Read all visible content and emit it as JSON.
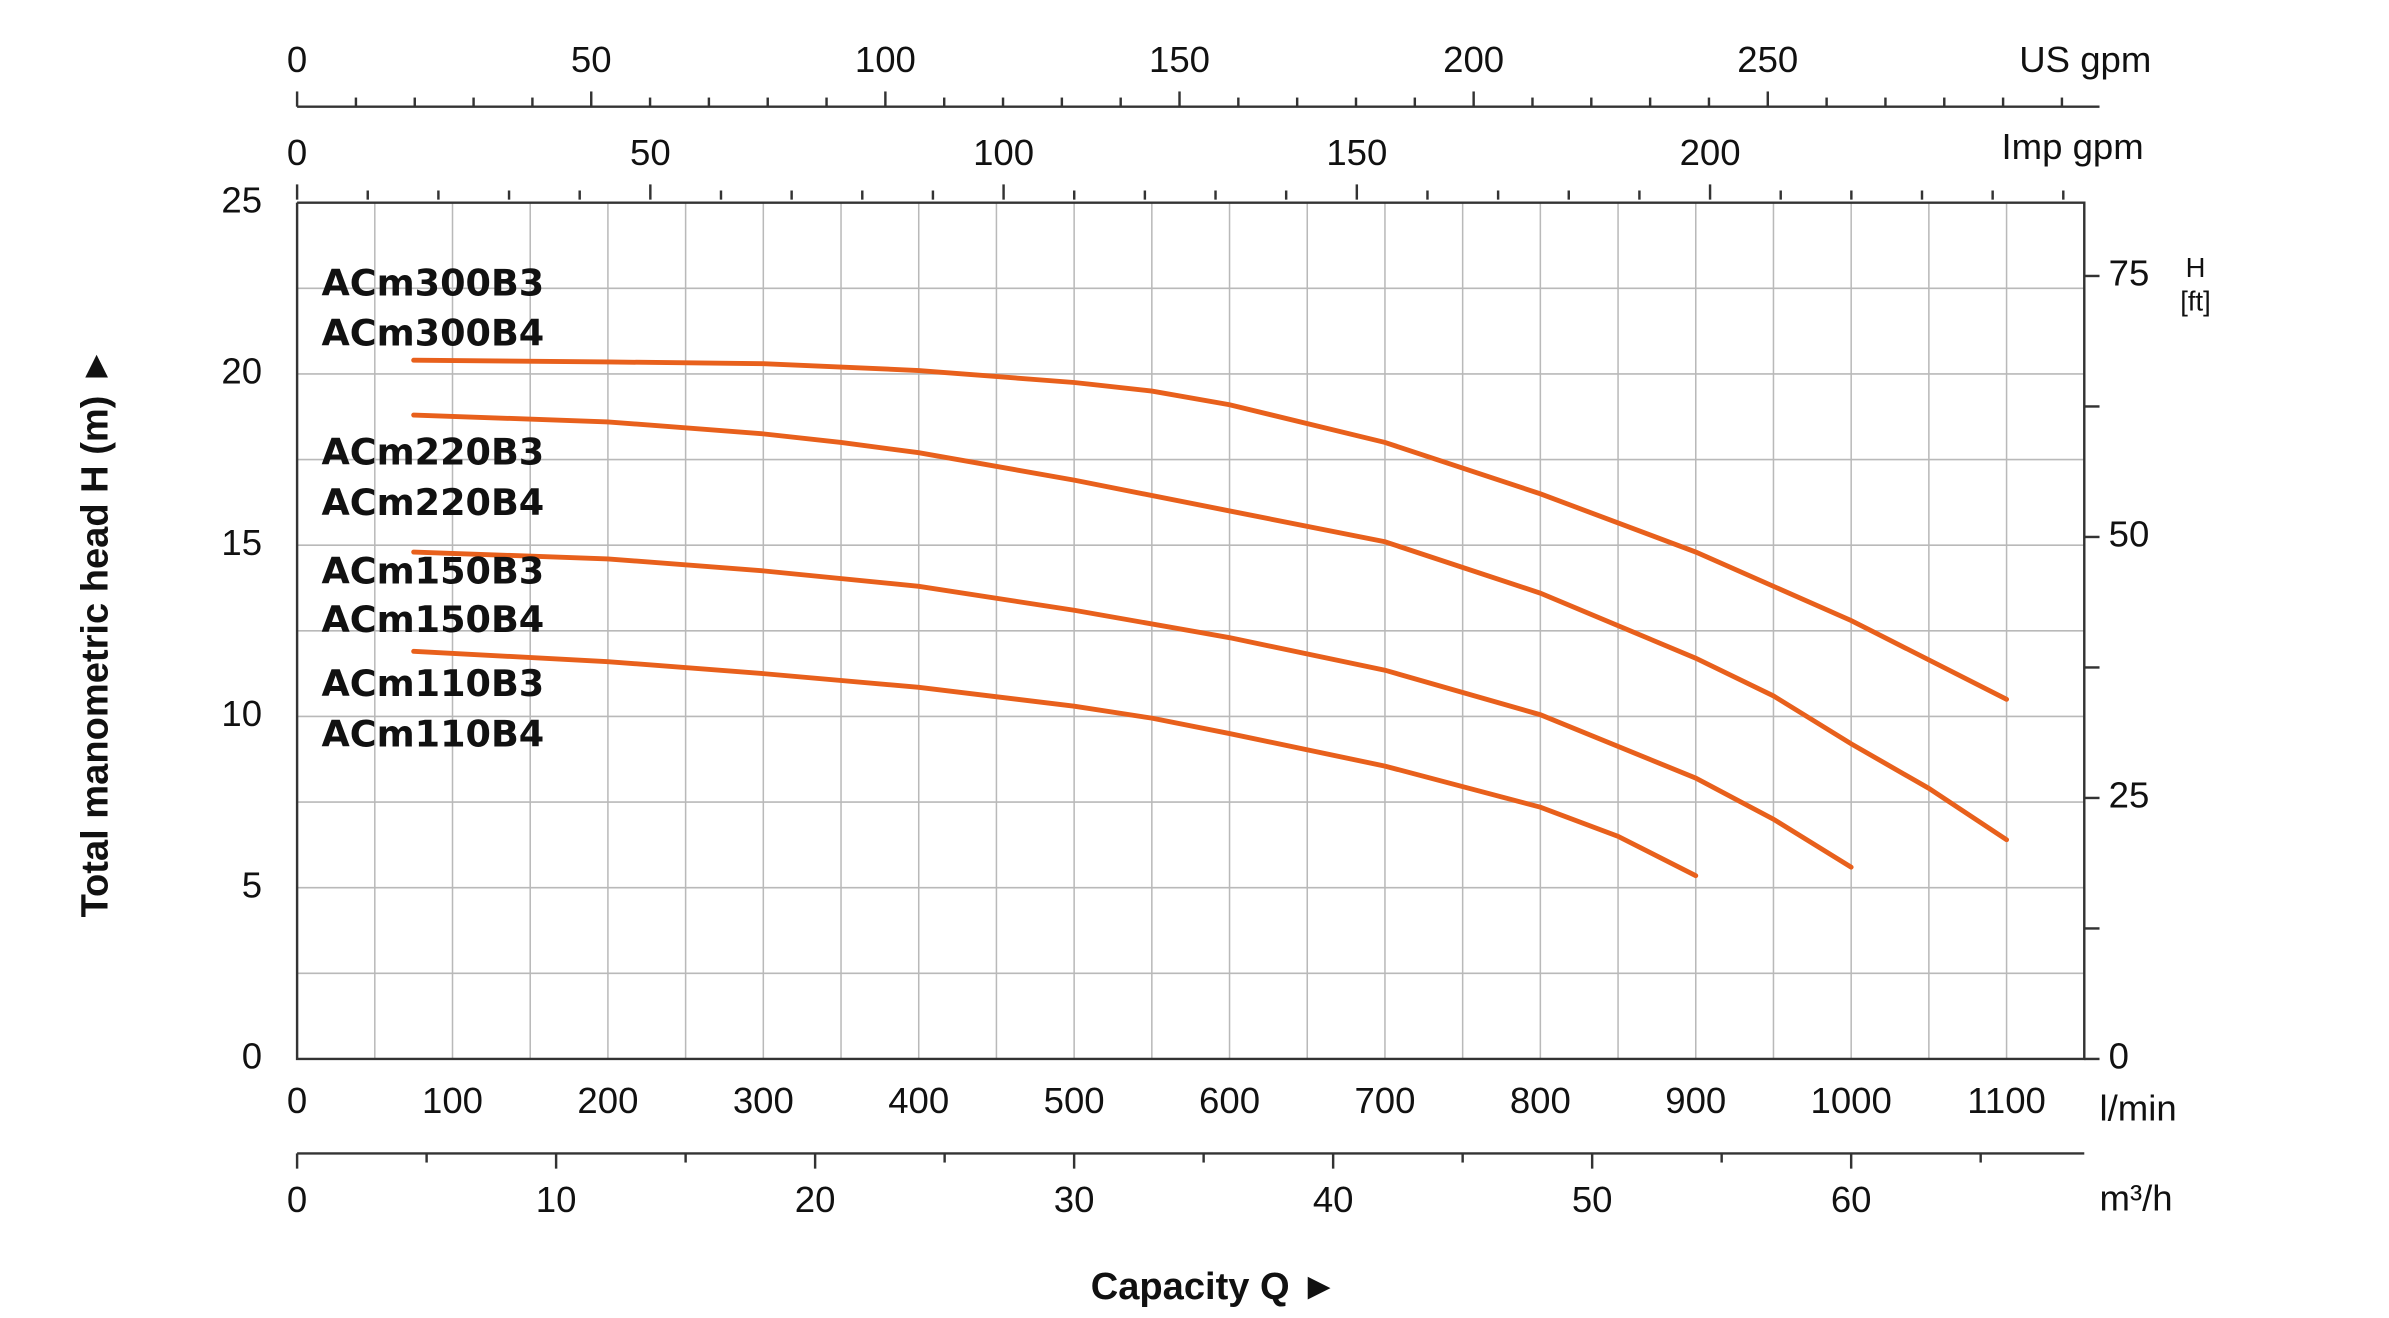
{
  "chart_data": {
    "type": "line",
    "x_label": "Capacity Q ►",
    "y_label": "Total manometric head H (m) ►",
    "x_unit": "l/min",
    "xlim": [
      0,
      1150
    ],
    "xticks": [
      0,
      100,
      200,
      300,
      400,
      500,
      600,
      700,
      800,
      900,
      1000,
      1100
    ],
    "x_minor_ticks": [
      50,
      150,
      250,
      350,
      450,
      550,
      650,
      750,
      850,
      950,
      1050
    ],
    "ylim": [
      0,
      25
    ],
    "yticks": [
      0,
      5,
      10,
      15,
      20,
      25
    ],
    "y_minor_ticks": [
      2.5,
      7.5,
      12.5,
      17.5,
      22.5
    ],
    "grid": true,
    "y2_label": [
      "H",
      "[ft]"
    ],
    "y2lim": [
      0,
      82.02
    ],
    "y2ticks": [
      0,
      25,
      50,
      75
    ],
    "y2_minor_ticks": [
      12.5,
      37.5,
      62.5
    ],
    "secondary_x_axes": [
      {
        "label": "US gpm",
        "side": "top",
        "lim": [
          0,
          303.8
        ],
        "ticks": [
          0,
          50,
          100,
          150,
          200,
          250
        ],
        "minor_ticks": [
          10,
          20,
          30,
          40,
          60,
          70,
          80,
          90,
          110,
          120,
          130,
          140,
          160,
          170,
          180,
          190,
          210,
          220,
          230,
          240,
          260,
          270,
          280,
          290,
          300
        ]
      },
      {
        "label": "Imp gpm",
        "side": "top",
        "lim": [
          0,
          252.97
        ],
        "ticks": [
          0,
          50,
          100,
          150,
          200
        ],
        "minor_ticks": [
          10,
          20,
          30,
          40,
          60,
          70,
          80,
          90,
          110,
          120,
          130,
          140,
          160,
          170,
          180,
          190,
          210,
          220,
          230,
          240,
          250
        ]
      },
      {
        "label": "m³/h",
        "side": "bottom",
        "lim": [
          0,
          69
        ],
        "ticks": [
          0,
          10,
          20,
          30,
          40,
          50,
          60
        ],
        "minor_ticks": [
          5,
          15,
          25,
          35,
          45,
          55,
          65
        ]
      }
    ],
    "series": [
      {
        "labels": [
          "ACm300B3",
          "ACm300B4"
        ],
        "color": "#e8601c",
        "x": [
          75,
          200,
          300,
          400,
          500,
          550,
          600,
          700,
          800,
          900,
          1000,
          1100
        ],
        "values": [
          20.4,
          20.35,
          20.3,
          20.1,
          19.75,
          19.5,
          19.1,
          18.0,
          16.5,
          14.8,
          12.8,
          10.5
        ]
      },
      {
        "labels": [
          "ACm220B3",
          "ACm220B4"
        ],
        "color": "#e8601c",
        "x": [
          75,
          200,
          300,
          350,
          400,
          500,
          600,
          700,
          800,
          900,
          950,
          1000,
          1050,
          1100
        ],
        "values": [
          18.8,
          18.6,
          18.25,
          18.0,
          17.7,
          16.9,
          16.0,
          15.1,
          13.6,
          11.7,
          10.6,
          9.2,
          7.9,
          6.4
        ]
      },
      {
        "labels": [
          "ACm150B3",
          "ACm150B4"
        ],
        "color": "#e8601c",
        "x": [
          75,
          200,
          300,
          400,
          500,
          600,
          700,
          800,
          900,
          950,
          1000
        ],
        "values": [
          14.8,
          14.6,
          14.25,
          13.8,
          13.1,
          12.3,
          11.35,
          10.05,
          8.2,
          7.0,
          5.6
        ]
      },
      {
        "labels": [
          "ACm110B3",
          "ACm110B4"
        ],
        "color": "#e8601c",
        "x": [
          75,
          200,
          300,
          400,
          500,
          550,
          600,
          700,
          800,
          850,
          900
        ],
        "values": [
          11.9,
          11.6,
          11.25,
          10.85,
          10.3,
          9.95,
          9.5,
          8.55,
          7.35,
          6.5,
          5.35
        ]
      }
    ]
  }
}
